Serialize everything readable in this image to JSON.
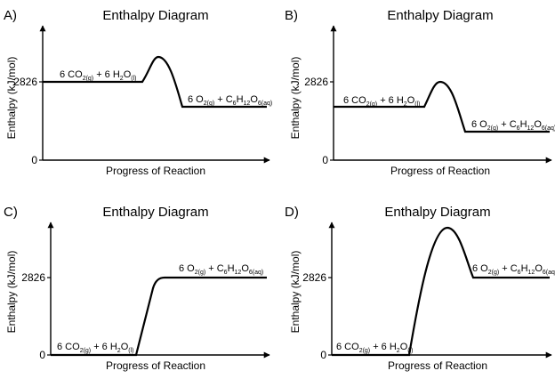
{
  "panels": [
    {
      "letter": "A)",
      "title": "Enthalpy Diagram",
      "xlabel": "Progress of Reaction",
      "ylabel": "Enthalpy (kJ/mol)",
      "tick_high": "2826",
      "tick_zero": "0",
      "reactants": [
        {
          "t": "6 CO"
        },
        {
          "t": "2(g)",
          "sub": true
        },
        {
          "t": " + 6 H"
        },
        {
          "t": "2",
          "sub": true
        },
        {
          "t": "O"
        },
        {
          "t": "(l)",
          "sub": true
        }
      ],
      "products": [
        {
          "t": "6 O"
        },
        {
          "t": "2(g)",
          "sub": true
        },
        {
          "t": " + C"
        },
        {
          "t": "6",
          "sub": true
        },
        {
          "t": "H"
        },
        {
          "t": "12",
          "sub": true
        },
        {
          "t": "O"
        },
        {
          "t": "6(aq)",
          "sub": true
        }
      ]
    },
    {
      "letter": "B)",
      "title": "Enthalpy Diagram",
      "xlabel": "Progress of Reaction",
      "ylabel": "Enthalpy (kJ/mol)",
      "tick_high": "2826",
      "tick_zero": "0",
      "reactants": [
        {
          "t": "6 CO"
        },
        {
          "t": "2(g)",
          "sub": true
        },
        {
          "t": " + 6 H"
        },
        {
          "t": "2",
          "sub": true
        },
        {
          "t": "O"
        },
        {
          "t": "(l)",
          "sub": true
        }
      ],
      "products": [
        {
          "t": "6 O"
        },
        {
          "t": "2(g)",
          "sub": true
        },
        {
          "t": " + C"
        },
        {
          "t": "6",
          "sub": true
        },
        {
          "t": "H"
        },
        {
          "t": "12",
          "sub": true
        },
        {
          "t": "O"
        },
        {
          "t": "6(aq)",
          "sub": true
        }
      ]
    },
    {
      "letter": "C)",
      "title": "Enthalpy Diagram",
      "xlabel": "Progress of Reaction",
      "ylabel": "Enthalpy (kJ/mol)",
      "tick_high": "2826",
      "tick_zero": "0",
      "reactants": [
        {
          "t": "6 CO"
        },
        {
          "t": "2(g)",
          "sub": true
        },
        {
          "t": " + 6 H"
        },
        {
          "t": "2",
          "sub": true
        },
        {
          "t": "O"
        },
        {
          "t": "(l)",
          "sub": true
        }
      ],
      "products": [
        {
          "t": "6 O"
        },
        {
          "t": "2(g)",
          "sub": true
        },
        {
          "t": " + C"
        },
        {
          "t": "6",
          "sub": true
        },
        {
          "t": "H"
        },
        {
          "t": "12",
          "sub": true
        },
        {
          "t": "O"
        },
        {
          "t": "6(aq)",
          "sub": true
        }
      ]
    },
    {
      "letter": "D)",
      "title": "Enthalpy Diagram",
      "xlabel": "Progress of Reaction",
      "ylabel": "Enthalpy (kJ/mol)",
      "tick_high": "2826",
      "tick_zero": "0",
      "reactants": [
        {
          "t": "6 CO"
        },
        {
          "t": "2(g)",
          "sub": true
        },
        {
          "t": " + 6 H"
        },
        {
          "t": "2",
          "sub": true
        },
        {
          "t": "O"
        },
        {
          "t": "(l)",
          "sub": true
        }
      ],
      "products": [
        {
          "t": "6 O"
        },
        {
          "t": "2(g)",
          "sub": true
        },
        {
          "t": " + C"
        },
        {
          "t": "6",
          "sub": true
        },
        {
          "t": "H"
        },
        {
          "t": "12",
          "sub": true
        },
        {
          "t": "O"
        },
        {
          "t": "6(aq)",
          "sub": true
        }
      ]
    }
  ]
}
